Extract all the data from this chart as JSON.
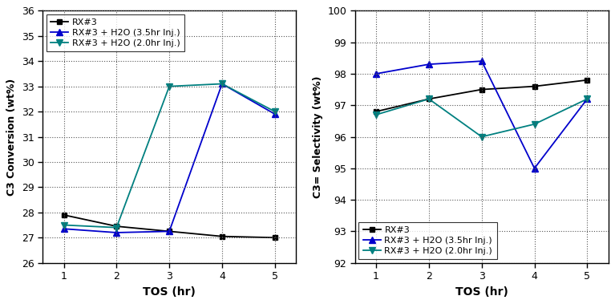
{
  "tos": [
    1,
    2,
    3,
    4,
    5
  ],
  "conv_rx3": [
    27.9,
    27.45,
    27.25,
    27.05,
    27.0
  ],
  "conv_35hr": [
    27.35,
    27.2,
    27.25,
    33.1,
    31.9
  ],
  "conv_20hr": [
    27.5,
    27.4,
    33.0,
    33.1,
    32.0
  ],
  "sel_rx3": [
    96.8,
    97.2,
    97.5,
    97.6,
    97.8
  ],
  "sel_35hr": [
    98.0,
    98.3,
    98.4,
    95.0,
    97.2
  ],
  "sel_20hr": [
    96.7,
    97.2,
    96.0,
    96.4,
    97.2
  ],
  "conv_ylim": [
    26,
    36
  ],
  "conv_yticks": [
    26,
    27,
    28,
    29,
    30,
    31,
    32,
    33,
    34,
    35,
    36
  ],
  "sel_ylim": [
    92,
    100
  ],
  "sel_yticks": [
    92,
    93,
    94,
    95,
    96,
    97,
    98,
    99,
    100
  ],
  "xticks": [
    1,
    2,
    3,
    4,
    5
  ],
  "xlabel": "TOS (hr)",
  "conv_ylabel": "C3 Conversion (wt%)",
  "sel_ylabel": "C3= Selectivity (wt%)",
  "color_rx3": "#000000",
  "color_35hr": "#0000cc",
  "color_20hr": "#008080",
  "label_rx3": "RX#3",
  "label_35hr": "RX#3 + H2O (3.5hr Inj.)",
  "label_20hr": "RX#3 + H2O (2.0hr Inj.)",
  "bg_color": "#ffffff",
  "tick_fontsize": 9,
  "label_fontsize": 10,
  "legend_fontsize": 8,
  "linewidth": 1.3,
  "markersize_sq": 5,
  "markersize_tri": 6
}
